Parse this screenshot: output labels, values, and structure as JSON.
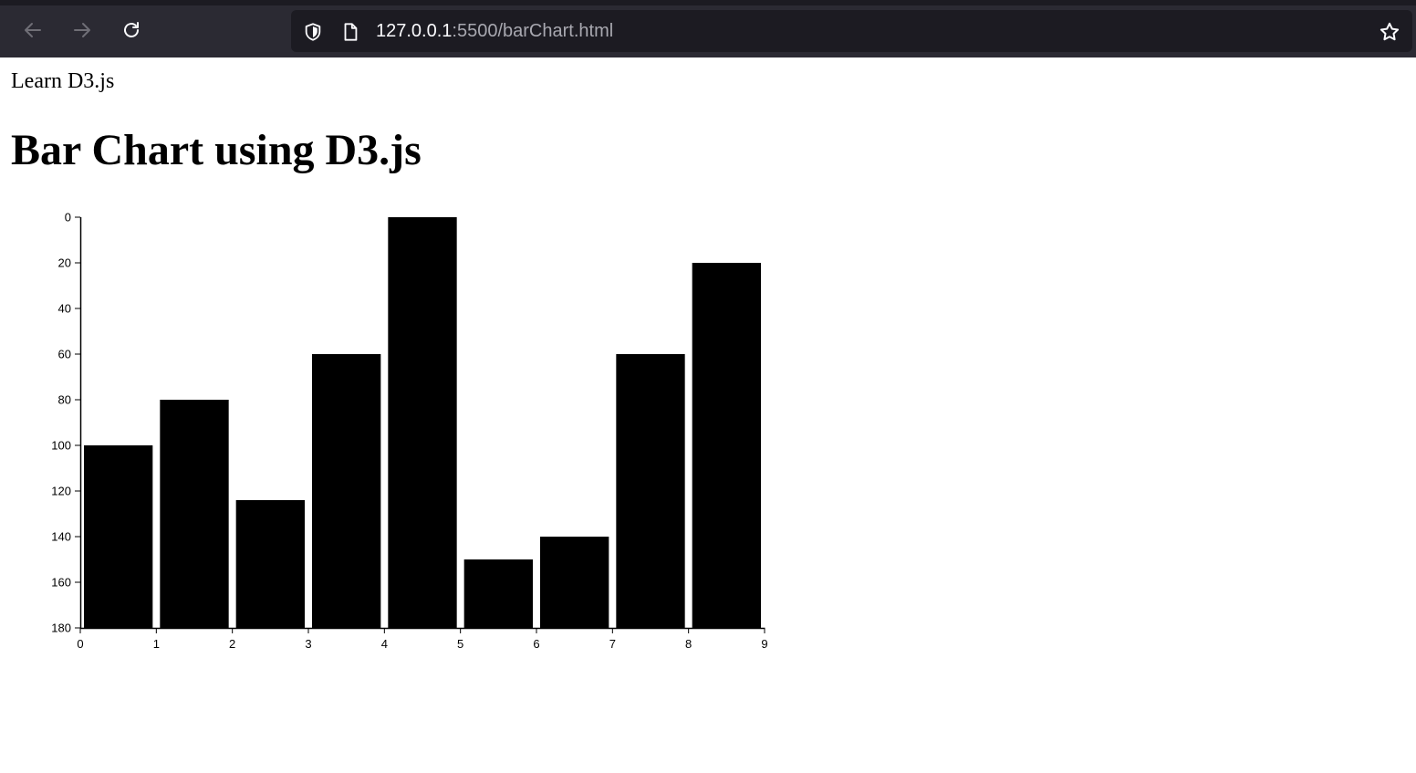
{
  "browser": {
    "url_host": "127.0.0.1",
    "url_path": ":5500/barChart.html",
    "icons": [
      "back-arrow-icon",
      "forward-arrow-icon",
      "reload-icon",
      "shield-icon",
      "page-icon",
      "star-icon"
    ]
  },
  "page": {
    "top_text": "Learn D3.js",
    "title": "Bar Chart using D3.js"
  },
  "chart_data": {
    "type": "bar",
    "title": "",
    "xlabel": "",
    "ylabel": "",
    "x_ticks": [
      "0",
      "1",
      "2",
      "3",
      "4",
      "5",
      "6",
      "7",
      "8",
      "9"
    ],
    "y_ticks": [
      "0",
      "20",
      "40",
      "60",
      "80",
      "100",
      "120",
      "140",
      "160",
      "180"
    ],
    "categories": [
      0,
      1,
      2,
      3,
      4,
      5,
      6,
      7,
      8
    ],
    "values": [
      100,
      80,
      124,
      60,
      0,
      150,
      140,
      60,
      20
    ],
    "ylim": [
      0,
      180
    ],
    "xlim": [
      0,
      9
    ],
    "y_axis_inverted": true,
    "bar_color": "#000000",
    "grid": false
  }
}
